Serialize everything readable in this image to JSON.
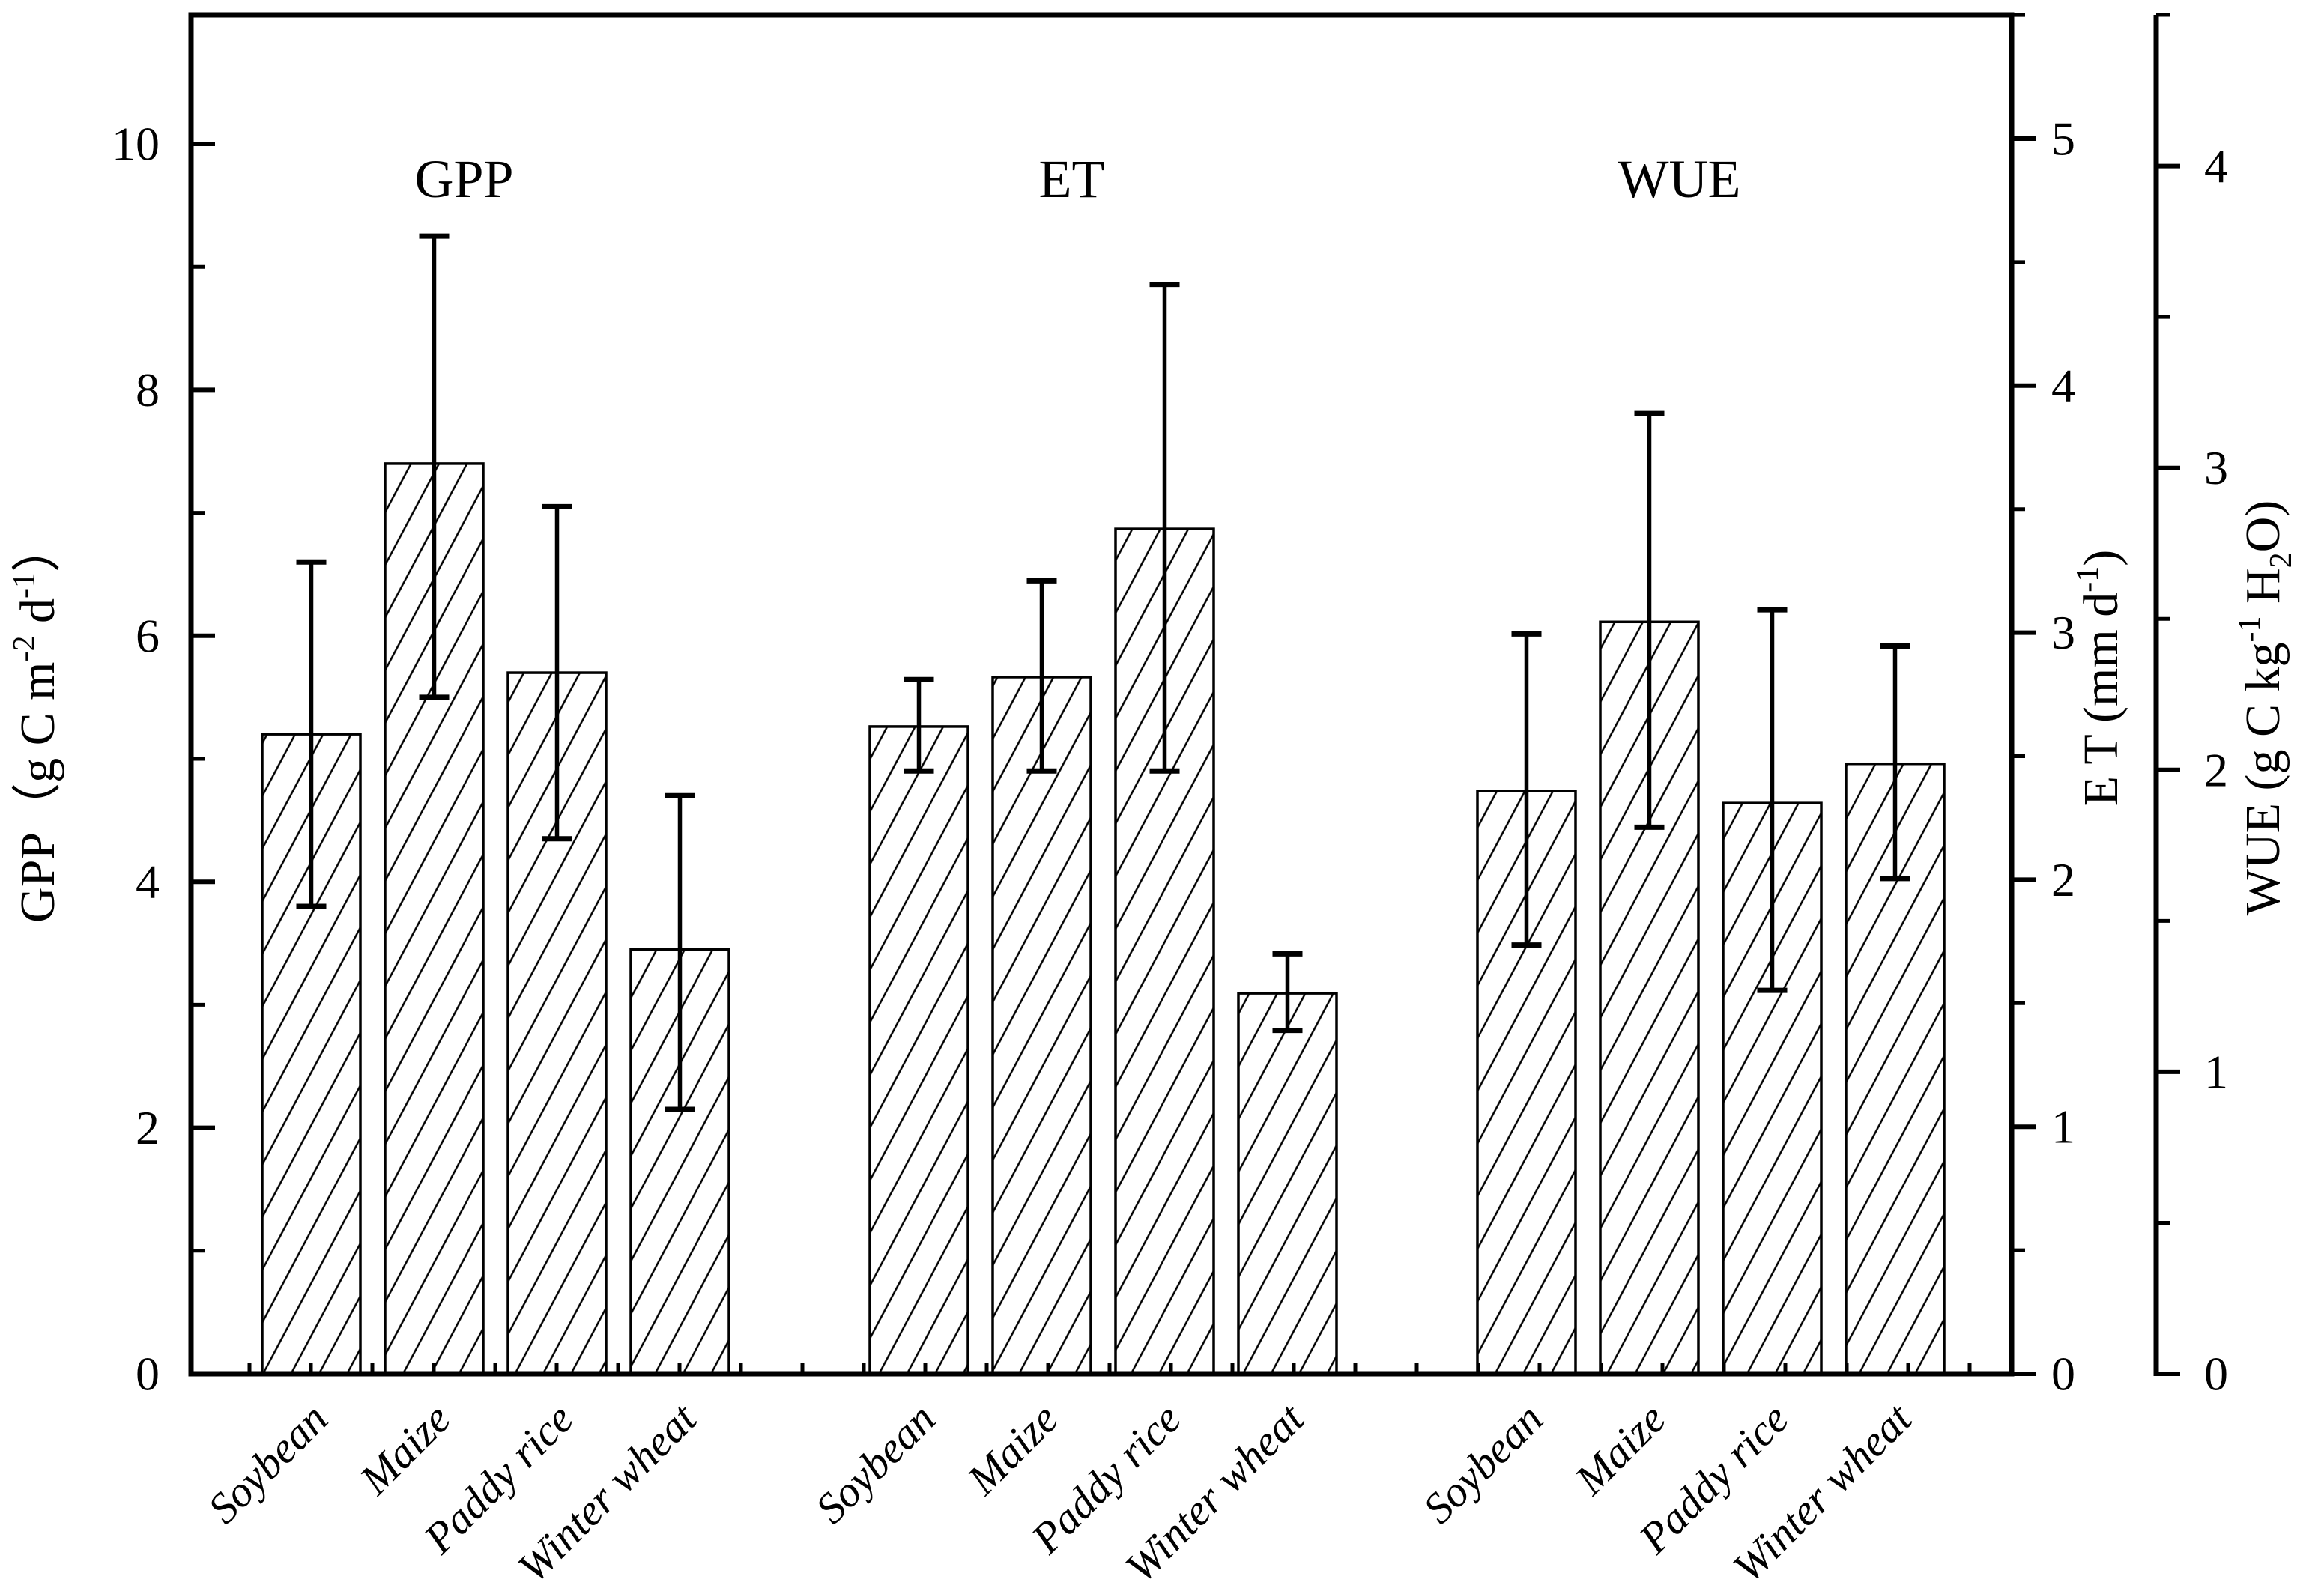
{
  "figure": {
    "background": "#ffffff",
    "ink": "#000000",
    "bar_fill": "none",
    "hatch_style": "thin diagonal lines, lower-left to upper-right"
  },
  "axes": {
    "left": {
      "label_parts": {
        "prefix": "GPP（g C m",
        "sup1": "-2",
        "mid": " d",
        "sup2": "-1",
        "suffix": "）"
      },
      "tick_labels": [
        "0",
        "2",
        "4",
        "6",
        "8",
        "10"
      ],
      "major_ticks": [
        0,
        2,
        4,
        6,
        8,
        10
      ],
      "minor_ticks": [
        1,
        3,
        5,
        7,
        9
      ],
      "range": [
        0,
        11
      ]
    },
    "et": {
      "label_parts": {
        "prefix": "E T (mm d",
        "sup1": "-1",
        "suffix": ")"
      },
      "tick_labels": [
        "0",
        "1",
        "2",
        "3",
        "4",
        "5"
      ],
      "major_ticks": [
        0,
        1,
        2,
        3,
        4,
        5
      ],
      "minor_ticks": [
        0.5,
        1.5,
        2.5,
        3.5,
        4.5,
        5.5
      ],
      "range": [
        0,
        5.5
      ]
    },
    "wue": {
      "label_parts": {
        "prefix": "WUE (g C kg",
        "sup1": "-1",
        "mid": " H",
        "sub1": "2",
        "suffix": "O)"
      },
      "tick_labels": [
        "0",
        "1",
        "2",
        "3",
        "4"
      ],
      "major_ticks": [
        0,
        1,
        2,
        3,
        4
      ],
      "minor_ticks": [
        0.5,
        1.5,
        2.5,
        3.5,
        4.5
      ],
      "range": [
        0,
        4.5
      ]
    }
  },
  "chart_data": {
    "type": "bar",
    "title": "",
    "grid": false,
    "legend": "none",
    "categories": [
      "Soybean",
      "Maize",
      "Paddy rice",
      "Winter wheat"
    ],
    "groups": [
      {
        "label": "GPP",
        "axis": "left",
        "unit": "g C m-2 d-1",
        "values": [
          5.2,
          7.4,
          5.7,
          3.45
        ],
        "err_low": [
          3.8,
          5.5,
          4.35,
          2.15
        ],
        "err_high": [
          6.6,
          9.25,
          7.05,
          4.7
        ]
      },
      {
        "label": "ET",
        "axis": "et",
        "unit": "mm d-1",
        "values": [
          2.62,
          2.82,
          3.42,
          1.54
        ],
        "err_low": [
          2.44,
          2.44,
          2.44,
          1.39
        ],
        "err_high": [
          2.81,
          3.21,
          4.41,
          1.7
        ]
      },
      {
        "label": "WUE",
        "axis": "wue",
        "unit": "g C kg-1 H2O",
        "values": [
          1.93,
          2.49,
          1.89,
          2.02
        ],
        "err_low": [
          1.42,
          1.81,
          1.27,
          1.64
        ],
        "err_high": [
          2.45,
          3.18,
          2.53,
          2.41
        ]
      }
    ]
  }
}
